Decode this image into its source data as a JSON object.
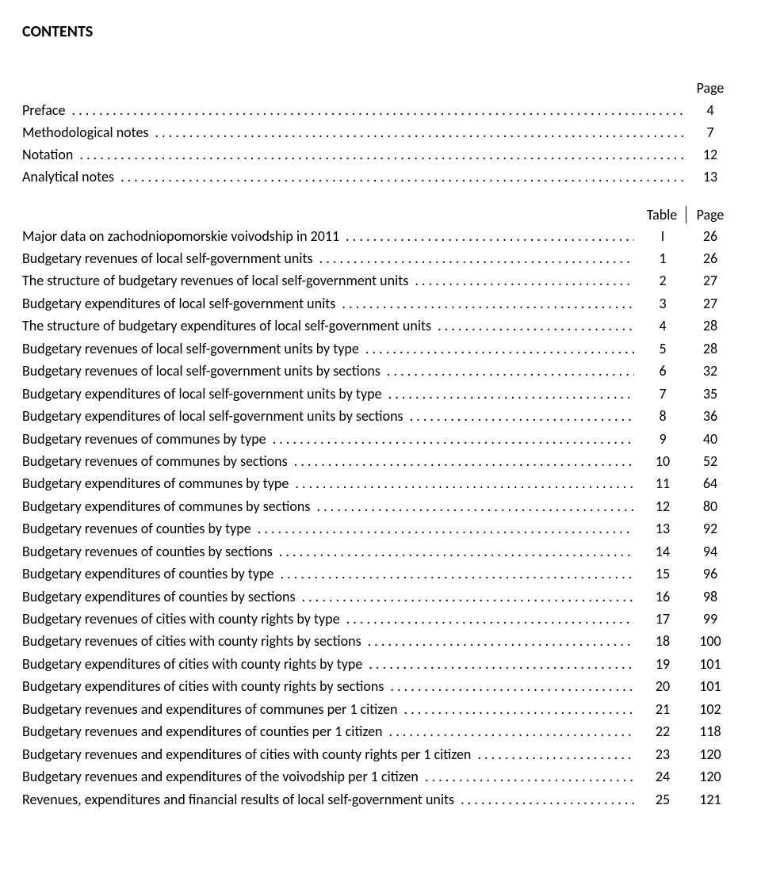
{
  "title": "CONTENTS",
  "header_page": "Page",
  "header_table": "Table",
  "header_page2": "Page",
  "simple": [
    {
      "label": "Preface",
      "page": "4"
    },
    {
      "label": "Methodological notes",
      "page": "7"
    },
    {
      "label": "Notation",
      "page": "12"
    },
    {
      "label": "Analytical notes",
      "page": "13"
    }
  ],
  "rows": [
    {
      "label": "Major data on zachodniopomorskie voivodship in 2011",
      "table": "I",
      "page": "26"
    },
    {
      "label": "Budgetary revenues of local self-government units",
      "table": "1",
      "page": "26"
    },
    {
      "label": "The structure of budgetary revenues of local self-government units",
      "table": "2",
      "page": "27"
    },
    {
      "label": "Budgetary expenditures of local self-government units",
      "table": "3",
      "page": "27"
    },
    {
      "label": "The structure of budgetary expenditures of local self-government units",
      "table": "4",
      "page": "28"
    },
    {
      "label": "Budgetary revenues of local self-government units  by type",
      "table": "5",
      "page": "28"
    },
    {
      "label": "Budgetary revenues of local self-government units  by sections",
      "table": "6",
      "page": "32"
    },
    {
      "label": "Budgetary expenditures of local self-government units by type",
      "table": "7",
      "page": "35"
    },
    {
      "label": "Budgetary expenditures of local self-government units  by sections",
      "table": "8",
      "page": "36"
    },
    {
      "label": "Budgetary revenues of communes by type",
      "table": "9",
      "page": "40"
    },
    {
      "label": "Budgetary revenues of communes by sections",
      "table": "10",
      "page": "52"
    },
    {
      "label": "Budgetary expenditures of communes by type",
      "table": "11",
      "page": "64"
    },
    {
      "label": "Budgetary expenditures of communes by sections",
      "table": "12",
      "page": "80"
    },
    {
      "label": "Budgetary revenues of counties by type",
      "table": "13",
      "page": "92"
    },
    {
      "label": "Budgetary revenues of counties by sections",
      "table": "14",
      "page": "94"
    },
    {
      "label": "Budgetary expenditures of counties by type",
      "table": "15",
      "page": "96"
    },
    {
      "label": "Budgetary expenditures of counties by sections",
      "table": "16",
      "page": "98"
    },
    {
      "label": "Budgetary revenues of  cities with county rights by type",
      "table": "17",
      "page": "99"
    },
    {
      "label": "Budgetary revenues of cities with county rights by sections",
      "table": "18",
      "page": "100"
    },
    {
      "label": "Budgetary expenditures of cities with county rights by type",
      "table": "19",
      "page": "101"
    },
    {
      "label": "Budgetary expenditures of cities with county rights  by sections",
      "table": "20",
      "page": "101"
    },
    {
      "label": "Budgetary revenues and expenditures of communes per 1 citizen",
      "table": "21",
      "page": "102"
    },
    {
      "label": "Budgetary revenues and expenditures of counties per  1 citizen",
      "table": "22",
      "page": "118"
    },
    {
      "label": "Budgetary revenues and expenditures of cities with county rights per  1 citizen",
      "table": "23",
      "page": "120"
    },
    {
      "label": "Budgetary revenues and expenditures of the voivodship  per  1 citizen",
      "table": "24",
      "page": "120"
    },
    {
      "label": "Revenues, expenditures  and financial results of local self-government units",
      "table": "25",
      "page": "121"
    }
  ]
}
